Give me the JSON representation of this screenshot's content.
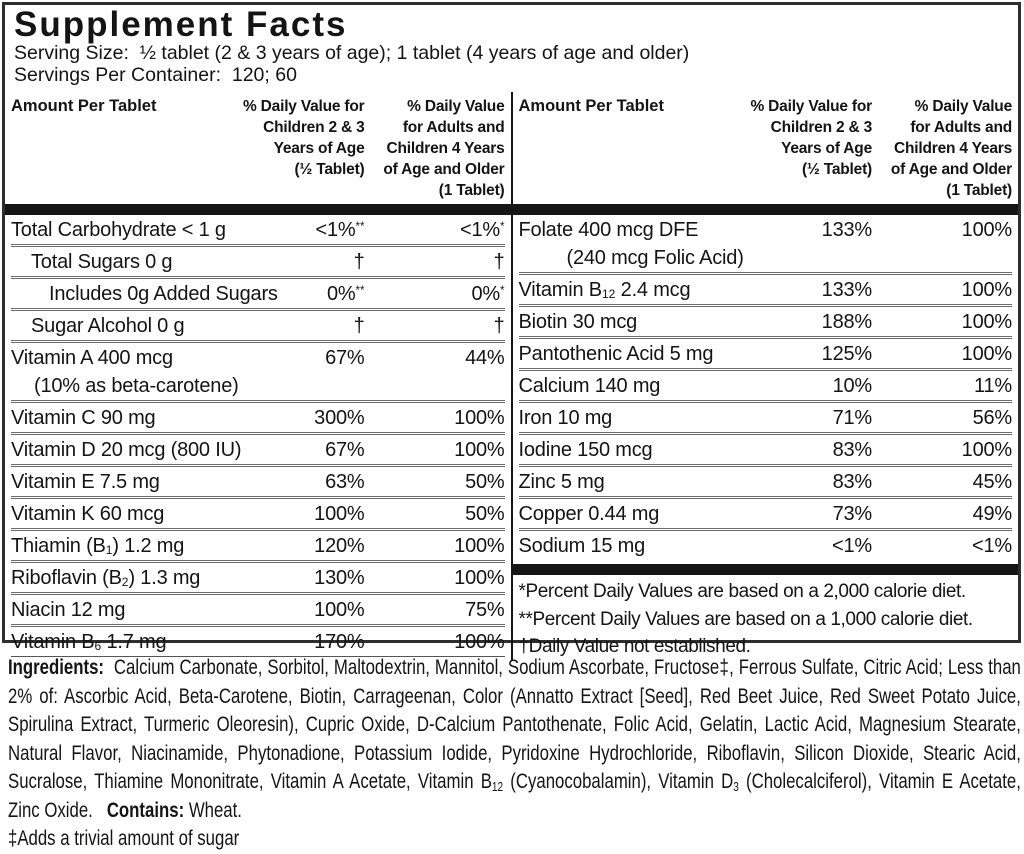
{
  "panel": {
    "title": "Supplement Facts",
    "serving_size": "Serving Size:  ½ tablet (2 & 3 years of age); 1 tablet (4 years of age and older)",
    "servings_per_container": "Servings Per Container:  120; 60"
  },
  "table": {
    "header": {
      "amount": "Amount Per Tablet",
      "dv_children": "% Daily Value for\nChildren 2 & 3\nYears of Age\n(½ Tablet)",
      "dv_adults": "% Daily Value\nfor Adults and\nChildren 4 Years\nof Age and Older\n(1 Tablet)"
    },
    "left_rows": [
      {
        "name": "Total Carbohydrate < 1 g",
        "dv_children": "<1%^**^",
        "dv_adults": "<1%^*^"
      },
      {
        "name": "Total Sugars 0 g",
        "dv_children": "†",
        "dv_adults": "†"
      },
      {
        "name": "Includes 0g Added Sugars",
        "dv_children": "0%^**^",
        "dv_adults": "0%^*^"
      },
      {
        "name": "Sugar Alcohol 0 g",
        "dv_children": "†",
        "dv_adults": "†"
      },
      {
        "name": "Vitamin A 400 mcg",
        "name2": "(10% as beta-carotene)",
        "dv_children": "67%",
        "dv_adults": "44%"
      },
      {
        "name": "Vitamin C 90 mg",
        "dv_children": "300%",
        "dv_adults": "100%"
      },
      {
        "name": "Vitamin D 20 mcg (800 IU)",
        "dv_children": "67%",
        "dv_adults": "100%"
      },
      {
        "name": "Vitamin E 7.5 mg",
        "dv_children": "63%",
        "dv_adults": "50%"
      },
      {
        "name": "Vitamin K 60 mcg",
        "dv_children": "100%",
        "dv_adults": "50%"
      },
      {
        "name": "Thiamin (B~1~) 1.2 mg",
        "dv_children": "120%",
        "dv_adults": "100%"
      },
      {
        "name": "Riboflavin (B~2~) 1.3 mg",
        "dv_children": "130%",
        "dv_adults": "100%"
      },
      {
        "name": "Niacin 12 mg",
        "dv_children": "100%",
        "dv_adults": "75%"
      },
      {
        "name": "Vitamin B~6~ 1.7 mg",
        "dv_children": "170%",
        "dv_adults": "100%"
      }
    ],
    "right_rows": [
      {
        "name": "Folate 400 mcg DFE",
        "name2": "(240 mcg Folic Acid)",
        "dv_children": "133%",
        "dv_adults": "100%"
      },
      {
        "name": "Vitamin B~12~ 2.4 mcg",
        "dv_children": "133%",
        "dv_adults": "100%"
      },
      {
        "name": "Biotin 30 mcg",
        "dv_children": "188%",
        "dv_adults": "100%"
      },
      {
        "name": "Pantothenic Acid 5 mg",
        "dv_children": "125%",
        "dv_adults": "100%"
      },
      {
        "name": "Calcium 140 mg",
        "dv_children": "10%",
        "dv_adults": "11%"
      },
      {
        "name": "Iron 10 mg",
        "dv_children": "71%",
        "dv_adults": "56%"
      },
      {
        "name": "Iodine 150 mcg",
        "dv_children": "83%",
        "dv_adults": "100%"
      },
      {
        "name": "Zinc 5 mg",
        "dv_children": "83%",
        "dv_adults": "45%"
      },
      {
        "name": "Copper 0.44 mg",
        "dv_children": "73%",
        "dv_adults": "49%"
      },
      {
        "name": "Sodium 15 mg",
        "dv_children": "<1%",
        "dv_adults": "<1%"
      }
    ],
    "footnotes": [
      "*Percent Daily Values are based on a 2,000 calorie diet.",
      "**Percent Daily Values are based on a 1,000 calorie diet.",
      "†Daily Value not established."
    ]
  },
  "ingredients": {
    "text": "**Ingredients:**  Calcium Carbonate, Sorbitol, Maltodextrin, Mannitol, Sodium Ascorbate, Fructose‡, Ferrous Sulfate, Citric Acid; Less than 2% of: Ascorbic Acid, Beta-Carotene, Biotin, Carrageenan, Color (Annatto Extract [Seed], Red Beet Juice, Red Sweet Potato Juice, Spirulina Extract, Turmeric Oleoresin), Cupric Oxide, D-Calcium Pantothenate, Folic Acid, Gelatin, Lactic Acid, Magnesium Stearate, Natural Flavor, Niacinamide, Phytonadione, Potassium Iodide, Pyridoxine Hydrochloride, Riboflavin, Silicon Dioxide, Stearic Acid, Sucralose, Thiamine Mononitrate, Vitamin A Acetate, Vitamin B~12~ (Cyanocobalamin), Vitamin D~3~ (Cholecalciferol), Vitamin E Acetate, Zinc Oxide.   **Contains:** Wheat.",
    "footnote": "‡Adds a trivial amount of sugar"
  },
  "colors": {
    "ink": "#141414",
    "bar": "#161616",
    "background": "#ffffff"
  }
}
